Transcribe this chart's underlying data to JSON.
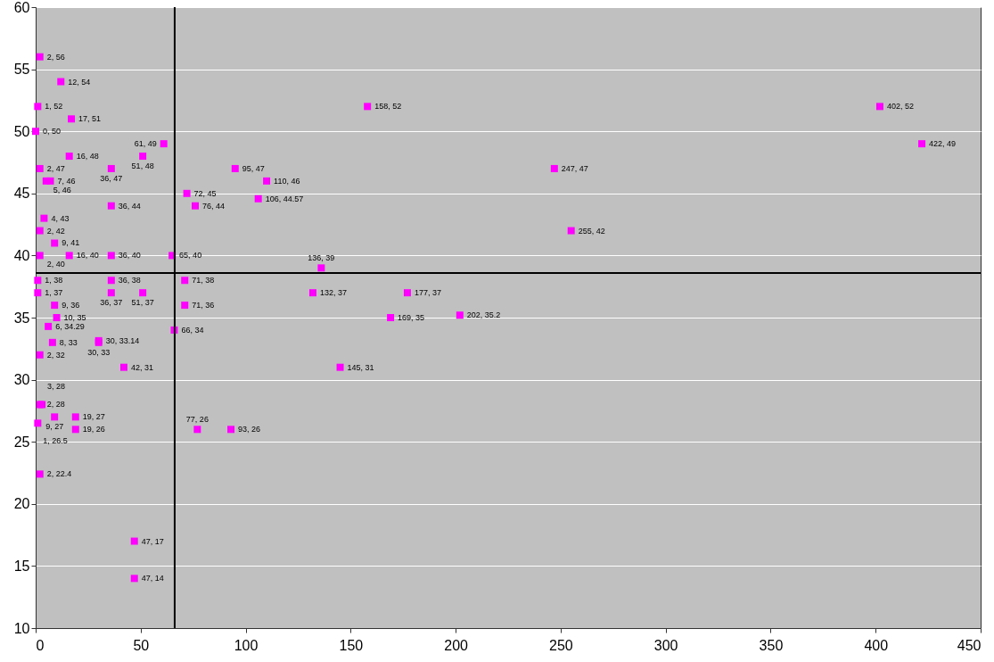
{
  "chart_data": {
    "type": "scatter",
    "x": [
      2,
      12,
      1,
      17,
      0,
      61,
      16,
      51,
      2,
      36,
      5,
      7,
      4,
      36,
      2,
      9,
      2,
      16,
      36,
      65,
      1,
      36,
      1,
      36,
      51,
      9,
      10,
      6,
      8,
      30,
      30,
      2,
      42,
      2,
      3,
      9,
      19,
      1,
      19,
      2,
      47,
      47,
      95,
      110,
      72,
      76,
      106,
      71,
      71,
      66,
      77,
      93,
      136,
      132,
      177,
      169,
      202,
      145,
      158,
      247,
      255,
      402,
      422
    ],
    "series": [
      {
        "color": "#ff00ff",
        "values": [
          56,
          54,
          52,
          51,
          50,
          49,
          48,
          48,
          47,
          47,
          46,
          46,
          43,
          44,
          42,
          41,
          40,
          40,
          40,
          40,
          38,
          38,
          37,
          37,
          37,
          36,
          35,
          34.29,
          33,
          33.14,
          33,
          32,
          31,
          28,
          28,
          27,
          27,
          26.5,
          26,
          22.4,
          17,
          14,
          47,
          46,
          45,
          44,
          44.57,
          38,
          36,
          34,
          26,
          26,
          39,
          37,
          37,
          35,
          35.2,
          31,
          52,
          47,
          42,
          52,
          49
        ],
        "value_labels": [
          "2, 56",
          "12, 54",
          "1, 52",
          "17, 51",
          "0, 50",
          "61, 49",
          "16, 48",
          "51, 48",
          "2, 47",
          "36, 47",
          "5, 46",
          "7, 46",
          "4, 43",
          "36, 44",
          "2, 42",
          "9, 41",
          "2, 40",
          "16, 40",
          "36, 40",
          "65, 40",
          "1, 38",
          "36, 38",
          "1, 37",
          "36, 37",
          "51, 37",
          "9, 36",
          "10, 35",
          "6, 34.29",
          "8, 33",
          "30, 33.14",
          "30, 33",
          "2, 32",
          "42, 31",
          "2, 28",
          "3, 28",
          "9, 27",
          "19, 27",
          "1, 26.5",
          "19, 26",
          "2, 22.4",
          "47, 17",
          "47, 14",
          "95, 47",
          "110, 46",
          "72, 45",
          "76, 44",
          "106, 44.57",
          "71, 38",
          "71, 36",
          "66, 34",
          "77, 26",
          "93, 26",
          "136, 39",
          "132, 37",
          "177, 37",
          "169, 35",
          "202, 35.2",
          "145, 31",
          "158, 52",
          "247, 47",
          "255, 42",
          "402, 52",
          "422, 49"
        ]
      }
    ],
    "xlim": [
      0,
      450
    ],
    "xticks": [
      0,
      50,
      100,
      150,
      200,
      250,
      300,
      350,
      400,
      450
    ],
    "ylim": [
      10,
      60
    ],
    "yticks": [
      10,
      15,
      20,
      25,
      30,
      35,
      40,
      45,
      50,
      55,
      60
    ],
    "grid": "y",
    "marker": "square",
    "ref_lines": [
      {
        "axis": "x",
        "value": 66.2,
        "color": "#000000"
      },
      {
        "axis": "y",
        "value": 38.6,
        "color": "#000000"
      }
    ]
  }
}
